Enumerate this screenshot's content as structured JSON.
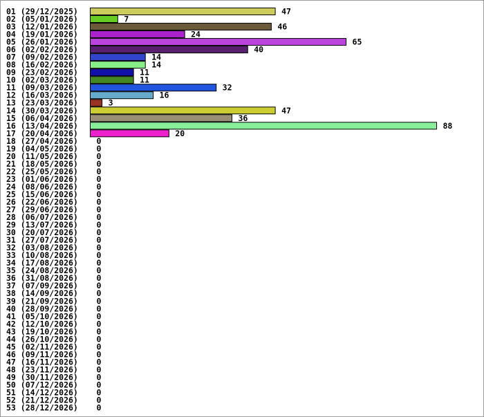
{
  "chart_data": {
    "type": "bar",
    "orientation": "horizontal",
    "categories": [
      "01 (29/12/2025)",
      "02 (05/01/2026)",
      "03 (12/01/2026)",
      "04 (19/01/2026)",
      "05 (26/01/2026)",
      "06 (02/02/2026)",
      "07 (09/02/2026)",
      "08 (16/02/2026)",
      "09 (23/02/2026)",
      "10 (02/03/2026)",
      "11 (09/03/2026)",
      "12 (16/03/2026)",
      "13 (23/03/2026)",
      "14 (30/03/2026)",
      "15 (06/04/2026)",
      "16 (13/04/2026)",
      "17 (20/04/2026)",
      "18 (27/04/2026)",
      "19 (04/05/2026)",
      "20 (11/05/2026)",
      "21 (18/05/2026)",
      "22 (25/05/2026)",
      "23 (01/06/2026)",
      "24 (08/06/2026)",
      "25 (15/06/2026)",
      "26 (22/06/2026)",
      "27 (29/06/2026)",
      "28 (06/07/2026)",
      "29 (13/07/2026)",
      "30 (20/07/2026)",
      "31 (27/07/2026)",
      "32 (03/08/2026)",
      "33 (10/08/2026)",
      "34 (17/08/2026)",
      "35 (24/08/2026)",
      "36 (31/08/2026)",
      "37 (07/09/2026)",
      "38 (14/09/2026)",
      "39 (21/09/2026)",
      "40 (28/09/2026)",
      "41 (05/10/2026)",
      "42 (12/10/2026)",
      "43 (19/10/2026)",
      "44 (26/10/2026)",
      "45 (02/11/2026)",
      "46 (09/11/2026)",
      "47 (16/11/2026)",
      "48 (23/11/2026)",
      "49 (30/11/2026)",
      "50 (07/12/2026)",
      "51 (14/12/2026)",
      "52 (21/12/2026)",
      "53 (28/12/2026)"
    ],
    "values": [
      47,
      7,
      46,
      24,
      65,
      40,
      14,
      14,
      11,
      11,
      32,
      16,
      3,
      47,
      36,
      88,
      20,
      0,
      0,
      0,
      0,
      0,
      0,
      0,
      0,
      0,
      0,
      0,
      0,
      0,
      0,
      0,
      0,
      0,
      0,
      0,
      0,
      0,
      0,
      0,
      0,
      0,
      0,
      0,
      0,
      0,
      0,
      0,
      0,
      0,
      0,
      0,
      0
    ],
    "colors": [
      "#cccc5c",
      "#66cc22",
      "#6b5a3a",
      "#aa22cc",
      "#bb44dd",
      "#5a2070",
      "#3344cc",
      "#88ee88",
      "#1111aa",
      "#448822",
      "#2255dd",
      "#66aacc",
      "#993322",
      "#cccc33",
      "#999077",
      "#88ee99",
      "#ee22cc",
      null,
      null,
      null,
      null,
      null,
      null,
      null,
      null,
      null,
      null,
      null,
      null,
      null,
      null,
      null,
      null,
      null,
      null,
      null,
      null,
      null,
      null,
      null,
      null,
      null,
      null,
      null,
      null,
      null,
      null,
      null,
      null,
      null,
      null,
      null,
      null
    ]
  }
}
